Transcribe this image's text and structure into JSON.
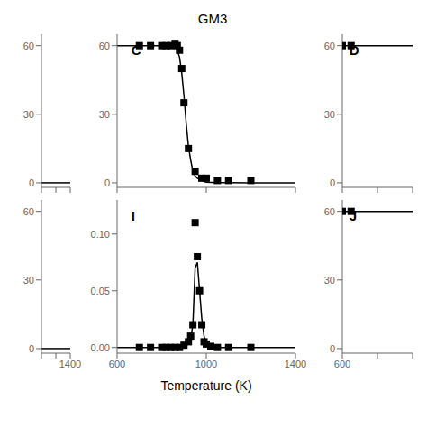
{
  "title": "GM3",
  "xlabel": "Temperature (K)",
  "chart_data": [
    {
      "type": "line",
      "xlim": [
        600,
        1400
      ],
      "ylim": [
        -2,
        65
      ],
      "xticks": [
        600,
        1000,
        1400
      ],
      "yticks": [
        0,
        30,
        60
      ],
      "tick_labels": "y",
      "grid": false,
      "series": [
        {
          "type": "line",
          "color": "#000000",
          "x": [
            600,
            1400
          ],
          "values": [
            0,
            0
          ]
        }
      ]
    },
    {
      "type": "line",
      "xlim": [
        600,
        1400
      ],
      "ylim": [
        -2,
        65
      ],
      "xticks": [
        {
          "value": 600,
          "label": null
        },
        {
          "value": 1000,
          "label": null
        },
        1400
      ],
      "yticks": [
        0,
        30,
        60
      ],
      "grid": false,
      "series": [
        {
          "type": "line",
          "color": "#000000",
          "x": [
            600,
            1400
          ],
          "values": [
            0,
            0
          ]
        }
      ]
    },
    {
      "type": "line",
      "annotation": "C",
      "xlim": [
        600,
        1400
      ],
      "ylim": [
        -2,
        65
      ],
      "xticks": [
        600,
        1000,
        1400
      ],
      "yticks": [
        0,
        30,
        60
      ],
      "tick_labels": "y",
      "grid": false,
      "series": [
        {
          "type": "line",
          "color": "#000000",
          "x": [
            600,
            650,
            700,
            750,
            800,
            830,
            850,
            860,
            870,
            880,
            890,
            900,
            910,
            920,
            930,
            940,
            950,
            960,
            970,
            980,
            990,
            1000,
            1050,
            1100,
            1200,
            1400
          ],
          "values": [
            60,
            60,
            60,
            60,
            60,
            60,
            60,
            59.5,
            58,
            55,
            48,
            38,
            26,
            16,
            10,
            5,
            3,
            2,
            1.5,
            1,
            0.5,
            0.3,
            0.1,
            0.05,
            0.02,
            0
          ]
        },
        {
          "type": "scatter",
          "color": "#000000",
          "marker": "square",
          "x": [
            700,
            750,
            800,
            820,
            840,
            860,
            870,
            880,
            890,
            900,
            920,
            950,
            980,
            1000,
            1050,
            1100,
            1200
          ],
          "values": [
            60,
            60,
            60,
            60,
            60,
            61,
            60,
            58,
            50,
            35,
            15,
            5,
            2,
            2,
            1,
            1,
            1
          ]
        }
      ]
    },
    {
      "type": "line",
      "annotation": "I",
      "xlim": [
        600,
        1400
      ],
      "ylim": [
        -0.005,
        0.13
      ],
      "xticks": [
        600,
        1000,
        1400
      ],
      "yticks": [
        {
          "value": 0.0,
          "label": "0.00"
        },
        {
          "value": 0.05,
          "label": "0.05"
        },
        {
          "value": 0.1,
          "label": "0.10"
        }
      ],
      "grid": false,
      "series": [
        {
          "type": "line",
          "color": "#000000",
          "x": [
            600,
            700,
            800,
            850,
            880,
            900,
            920,
            930,
            940,
            950,
            960,
            970,
            980,
            990,
            1000,
            1010,
            1020,
            1040,
            1060,
            1100,
            1200,
            1400
          ],
          "values": [
            0.0,
            0.0,
            0.0,
            0.0,
            0.0,
            0.001,
            0.003,
            0.008,
            0.02,
            0.07,
            0.075,
            0.05,
            0.025,
            0.01,
            0.004,
            0.002,
            0.001,
            0.0,
            0.0,
            0.0,
            0.0,
            0.0
          ]
        },
        {
          "type": "scatter",
          "color": "#000000",
          "marker": "square",
          "x": [
            700,
            750,
            800,
            820,
            840,
            860,
            880,
            900,
            920,
            930,
            940,
            950,
            960,
            970,
            980,
            990,
            1000,
            1020,
            1050,
            1100,
            1200
          ],
          "values": [
            0.0,
            0.0,
            0.0,
            0.0,
            0.0,
            0.0,
            0.0,
            0.002,
            0.005,
            0.01,
            0.02,
            0.11,
            0.08,
            0.05,
            0.02,
            0.005,
            0.003,
            0.001,
            0.0,
            0.0,
            0.0
          ]
        }
      ]
    },
    {
      "type": "line",
      "annotation": "D",
      "xlim": [
        600,
        1400
      ],
      "ylim": [
        -2,
        65
      ],
      "xticks": [
        600,
        1000,
        1400
      ],
      "yticks": [
        0,
        30,
        60
      ],
      "tick_labels": "y",
      "grid": false,
      "series": [
        {
          "type": "line",
          "color": "#000000",
          "x": [
            600,
            1400
          ],
          "values": [
            60,
            60
          ]
        },
        {
          "type": "scatter",
          "color": "#000000",
          "marker": "square",
          "x": [
            600,
            700
          ],
          "values": [
            60,
            60
          ]
        }
      ]
    },
    {
      "type": "line",
      "annotation": "J",
      "xlim": [
        600,
        1400
      ],
      "ylim": [
        -2,
        65
      ],
      "xticks": [
        600,
        {
          "value": 1000,
          "label": null
        },
        {
          "value": 1400,
          "label": null
        }
      ],
      "yticks": [
        0,
        30,
        60
      ],
      "grid": false,
      "series": [
        {
          "type": "line",
          "color": "#000000",
          "x": [
            600,
            1400
          ],
          "values": [
            60,
            60
          ]
        },
        {
          "type": "scatter",
          "color": "#000000",
          "marker": "square",
          "x": [
            600,
            700
          ],
          "values": [
            60,
            60
          ]
        }
      ]
    }
  ]
}
